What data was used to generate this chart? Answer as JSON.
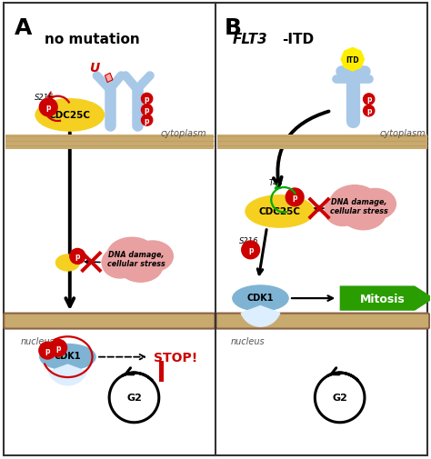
{
  "fig_width": 4.74,
  "fig_height": 5.06,
  "dpi": 100,
  "bg_color": "#ffffff",
  "border_color": "#333333",
  "panel_A_title": "no mutation",
  "panel_B_title": "FLT3-ITD",
  "label_A": "A",
  "label_B": "B",
  "cytoplasm_label": "cytoplasm",
  "nucleus_label": "nucleus",
  "g2_label": "G2",
  "stop_label": "STOP!",
  "mitosis_label": "Mitosis",
  "dna_damage_label": "DNA damage,\ncellular stress",
  "cdc25c_label": "CDC25C",
  "cdk1_label": "CDK1",
  "s216_label": "S216",
  "t48_label": "T48",
  "itd_label": "ITD",
  "membrane_color": "#c8a96e",
  "membrane_stripe_color": "#b89050",
  "cdc25c_color": "#f5d020",
  "cdk1_color": "#7fb3d3",
  "dna_cloud_color": "#e8a0a0",
  "p_circle_color": "#cc0000",
  "p_text_color": "#ffffff",
  "stop_color": "#cc0000",
  "mitosis_color": "#2a9d00",
  "red_x_color": "#cc0000",
  "green_arrow_color": "#00aa00",
  "receptor_color": "#a8c8e8",
  "itd_color": "#ffee00",
  "u_label_color": "#cc0000"
}
